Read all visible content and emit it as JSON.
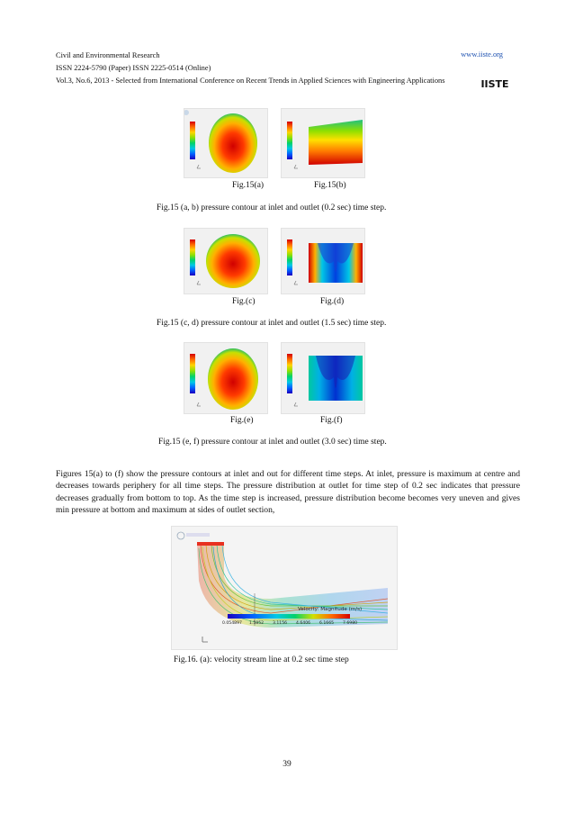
{
  "header": {
    "journal": "Civil and Environmental Research",
    "url": "www.iiste.org",
    "issn": "ISSN 2224-5790 (Paper) ISSN 2225-0514 (Online)",
    "volume": "Vol.3, No.6, 2013 - Selected from International Conference on Recent Trends in Applied Sciences with Engineering Applications",
    "logo_text": "IISTE"
  },
  "figures": {
    "fig15a_label": "Fig.15(a)",
    "fig15b_label": "Fig.15(b)",
    "caption_ab": "Fig.15 (a, b) pressure contour at inlet and outlet (0.2 sec) time step.",
    "fig15c_label": "Fig.(c)",
    "fig15d_label": "Fig.(d)",
    "caption_cd": "Fig.15 (c, d) pressure contour at inlet and outlet (1.5 sec) time step.",
    "fig15e_label": "Fig.(e)",
    "fig15f_label": "Fig.(f)",
    "caption_ef": "Fig.15 (e, f) pressure contour at inlet and outlet (3.0 sec) time step.",
    "fig16_caption": "Fig.16. (a): velocity stream line at 0.2 sec time step"
  },
  "fig16": {
    "legend_title": "Velocity: Magnitude (m/s)",
    "legend_values": [
      "0.054897",
      "1.5852",
      "3.1156",
      "4.6406",
      "6.1665",
      "7.6980"
    ]
  },
  "body_text": "Figures 15(a) to (f) show the pressure contours at inlet and out for different time steps. At inlet, pressure is maximum at centre and decreases towards periphery for all time steps. The pressure distribution at  outlet for time step of 0.2 sec indicates that pressure decreases gradually from bottom to top. As the time step is increased, pressure distribution become becomes very uneven and gives min pressure at bottom and maximum at sides of outlet section,",
  "page_number": "39"
}
